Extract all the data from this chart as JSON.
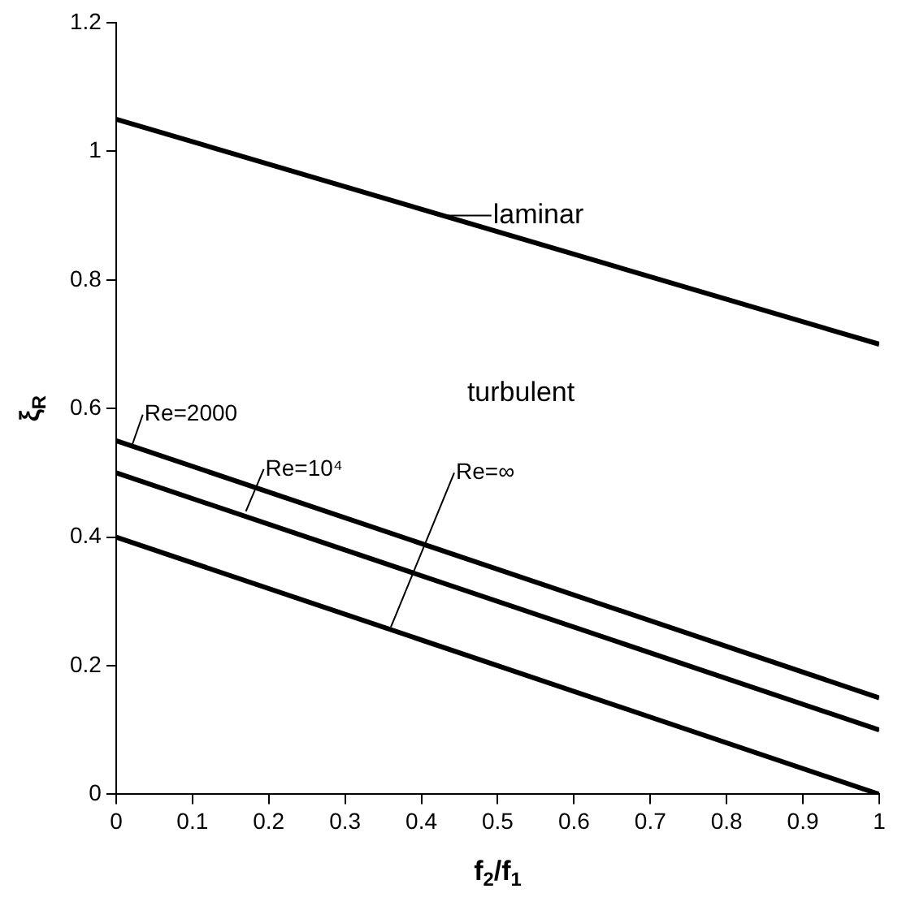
{
  "chart_data": {
    "type": "line",
    "xlabel": "f$_{2}$/f$_{1}$",
    "ylabel": "ξ$_{R}$",
    "x": [
      0,
      1
    ],
    "series": [
      {
        "color": "#000000",
        "values": [
          1.05,
          0.7
        ]
      },
      {
        "color": "#000000",
        "values": [
          0.55,
          0.15
        ]
      },
      {
        "color": "#000000",
        "values": [
          0.5,
          0.1
        ]
      },
      {
        "color": "#000000",
        "values": [
          0.4,
          0
        ]
      }
    ],
    "xlim": [
      0,
      1
    ],
    "xticks": [
      0,
      0.1,
      0.2,
      0.3,
      0.4,
      0.5,
      0.6,
      0.7,
      0.8,
      0.9,
      1
    ],
    "ylim": [
      0,
      1.2
    ],
    "yticks": [
      0,
      0.2,
      0.4,
      0.6,
      0.8,
      1,
      1.2
    ],
    "grid": false,
    "legend": false,
    "marker": "none",
    "line_style": "solid",
    "annotations": [
      {
        "text": "laminar",
        "x": 0.43,
        "y": 0.9
      },
      {
        "text": "Re=2000",
        "x": 0.02,
        "y": 0.54
      },
      {
        "text": "Re=10⁴",
        "x": 0.17,
        "y": 0.44
      },
      {
        "text": "Re=∞",
        "x": 0.36,
        "y": 0.26
      },
      "turbulent"
    ]
  }
}
